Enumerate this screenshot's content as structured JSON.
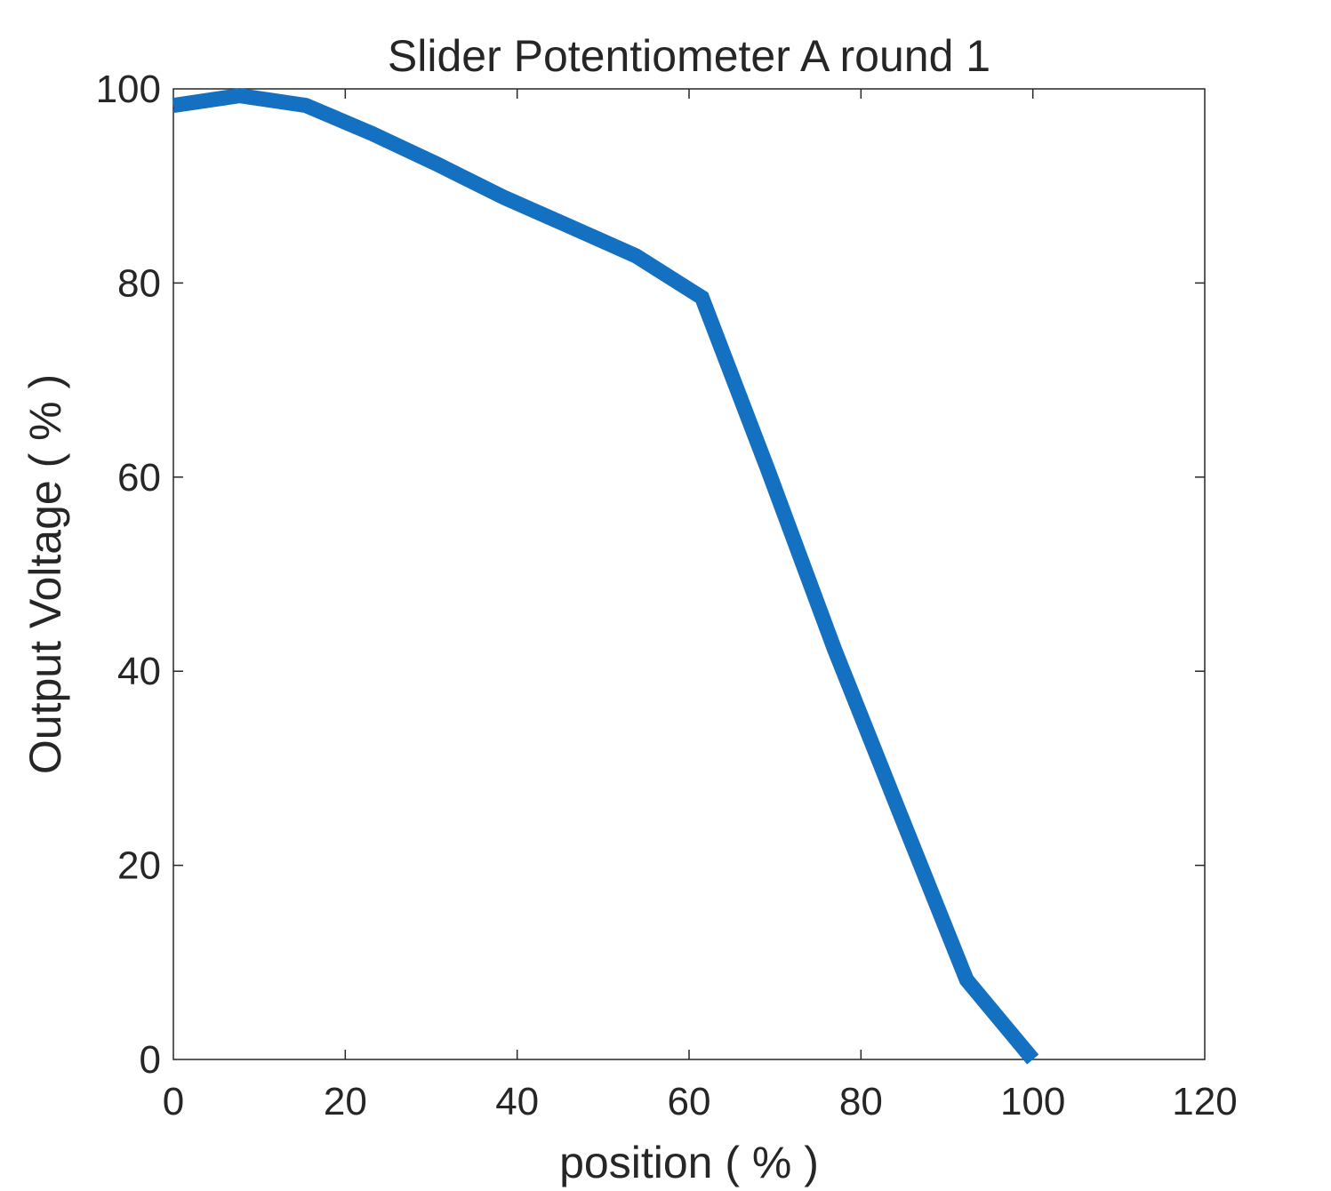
{
  "chart_data": {
    "type": "line",
    "title": "Slider Potentiometer A round 1",
    "xlabel": "position ( % )",
    "ylabel": "Output Voltage ( % )",
    "xlim": [
      0,
      120
    ],
    "ylim": [
      0,
      100
    ],
    "xticks": [
      0,
      20,
      40,
      60,
      80,
      100,
      120
    ],
    "yticks": [
      0,
      20,
      40,
      60,
      80,
      100
    ],
    "grid": false,
    "series_color": "#1470C0",
    "series": [
      {
        "x": [
          0,
          7.7,
          15.4,
          23.1,
          30.8,
          38.5,
          46.2,
          53.8,
          61.5,
          69.2,
          76.9,
          84.6,
          92.3,
          100
        ],
        "y": [
          98.3,
          99.3,
          98.3,
          95.4,
          92.2,
          88.8,
          85.8,
          82.8,
          78.5,
          60.7,
          42.3,
          25.2,
          8.2,
          0
        ]
      }
    ]
  }
}
